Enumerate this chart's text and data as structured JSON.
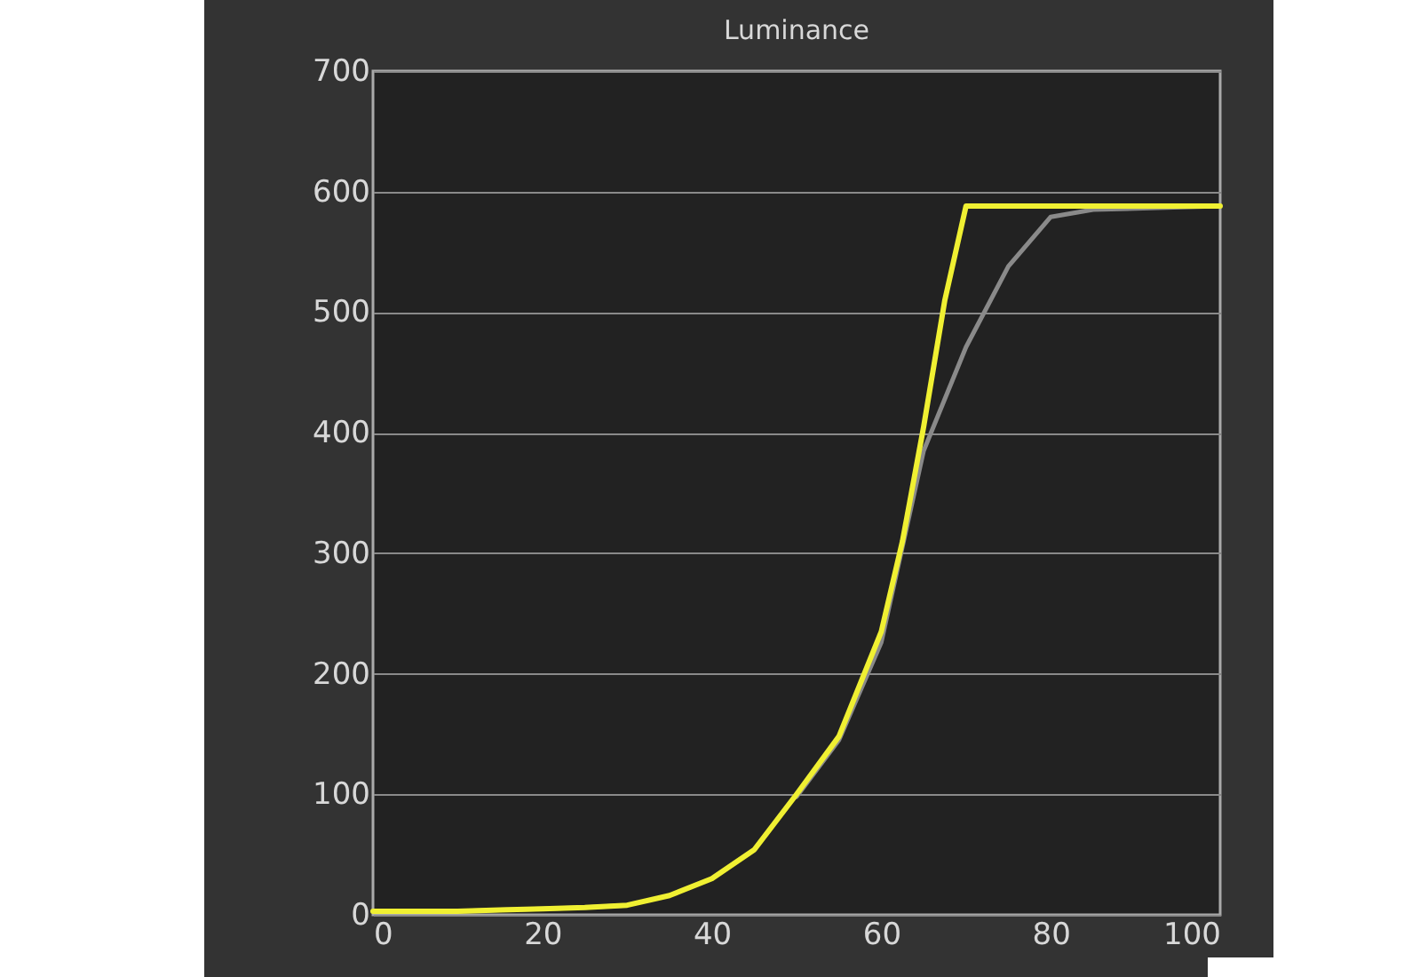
{
  "chart_data": {
    "type": "line",
    "title": "Luminance",
    "xlim": [
      0,
      100
    ],
    "xticks": [
      0,
      20,
      40,
      60,
      80,
      100
    ],
    "ylim": [
      0,
      700
    ],
    "yticks": [
      0,
      100,
      200,
      300,
      400,
      500,
      600,
      700
    ],
    "grid": "y",
    "line_style": "solid",
    "marker": "none",
    "series": [
      {
        "color": "#8a8a8a",
        "x": [
          0,
          5,
          10,
          15,
          20,
          25,
          30,
          35,
          40,
          45,
          50,
          55,
          60,
          65,
          70,
          75,
          80,
          85,
          100
        ],
        "values": [
          3,
          3,
          3,
          4,
          5,
          6,
          8,
          null,
          null,
          null,
          98,
          145,
          226,
          385,
          471,
          538,
          579,
          585,
          588
        ]
      },
      {
        "color": "#f0f032",
        "x": [
          0,
          5,
          10,
          15,
          20,
          25,
          30,
          35,
          40,
          45,
          50,
          55,
          60,
          62.5,
          65,
          67.5,
          70,
          100
        ],
        "values": [
          3,
          3,
          3,
          4,
          5,
          6,
          8,
          16,
          30,
          54,
          100,
          148,
          235,
          310,
          405,
          510,
          588,
          588
        ]
      }
    ]
  }
}
